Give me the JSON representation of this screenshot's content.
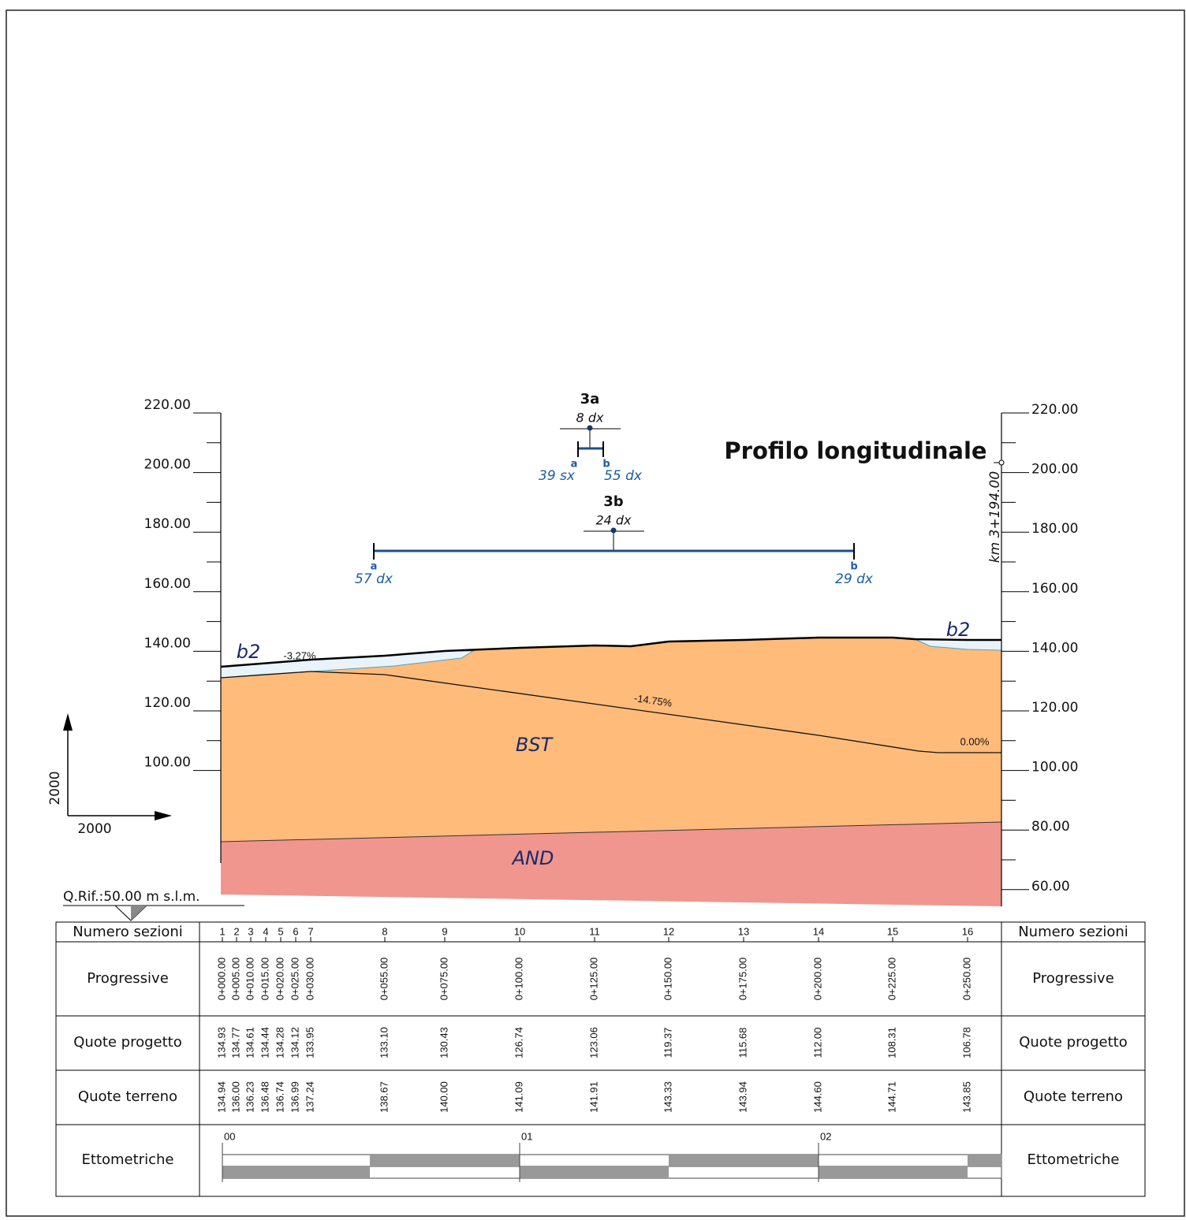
{
  "title": "Profilo longitudinale",
  "axis_left": [
    "220.00",
    "200.00",
    "180.00",
    "160.00",
    "140.00",
    "120.00",
    "100.00"
  ],
  "axis_right": [
    "220.00",
    "200.00",
    "180.00",
    "160.00",
    "140.00",
    "120.00",
    "100.00",
    "80.00",
    "60.00"
  ],
  "scale": {
    "vertical": "2000",
    "horizontal": "2000"
  },
  "reference": "Q.Rif.:50.00 m s.l.m.",
  "km_label": "km 3+194.00",
  "markers": [
    {
      "id": "3a",
      "offset": "8 dx",
      "a_letter": "a",
      "b_letter": "b",
      "a": "39 sx",
      "b": "55 dx"
    },
    {
      "id": "3b",
      "offset": "24 dx",
      "a_letter": "a",
      "b_letter": "b",
      "a": "57 dx",
      "b": "29 dx"
    }
  ],
  "layers": {
    "b2_left": "b2",
    "b2_right": "b2",
    "bst": "BST",
    "and": "AND"
  },
  "slopes": [
    "-3.27%",
    "-14.75%",
    "0.00%"
  ],
  "table": {
    "row_labels": [
      "Numero sezioni",
      "Progressive",
      "Quote progetto",
      "Quote terreno",
      "Ettometriche"
    ],
    "sections": [
      {
        "n": "1",
        "prog": "0+000.00",
        "progetto": "134.93",
        "terreno": "134.94"
      },
      {
        "n": "2",
        "prog": "0+005.00",
        "progetto": "134.77",
        "terreno": "136.00"
      },
      {
        "n": "3",
        "prog": "0+010.00",
        "progetto": "134.61",
        "terreno": "136.23"
      },
      {
        "n": "4",
        "prog": "0+015.00",
        "progetto": "134.44",
        "terreno": "136.48"
      },
      {
        "n": "5",
        "prog": "0+020.00",
        "progetto": "134.28",
        "terreno": "136.74"
      },
      {
        "n": "6",
        "prog": "0+025.00",
        "progetto": "134.12",
        "terreno": "136.99"
      },
      {
        "n": "7",
        "prog": "0+030.00",
        "progetto": "133.95",
        "terreno": "137.24"
      },
      {
        "n": "8",
        "prog": "0+055.00",
        "progetto": "133.10",
        "terreno": "138.67"
      },
      {
        "n": "9",
        "prog": "0+075.00",
        "progetto": "130.43",
        "terreno": "140.00"
      },
      {
        "n": "10",
        "prog": "0+100.00",
        "progetto": "126.74",
        "terreno": "141.09"
      },
      {
        "n": "11",
        "prog": "0+125.00",
        "progetto": "123.06",
        "terreno": "141.91"
      },
      {
        "n": "12",
        "prog": "0+150.00",
        "progetto": "119.37",
        "terreno": "143.33"
      },
      {
        "n": "13",
        "prog": "0+175.00",
        "progetto": "115.68",
        "terreno": "143.94"
      },
      {
        "n": "14",
        "prog": "0+200.00",
        "progetto": "112.00",
        "terreno": "144.60"
      },
      {
        "n": "15",
        "prog": "0+225.00",
        "progetto": "108.31",
        "terreno": "144.71"
      },
      {
        "n": "16",
        "prog": "0+250.00",
        "progetto": "106.78",
        "terreno": "143.85"
      }
    ],
    "ettometriche": [
      "00",
      "01",
      "02"
    ]
  }
}
